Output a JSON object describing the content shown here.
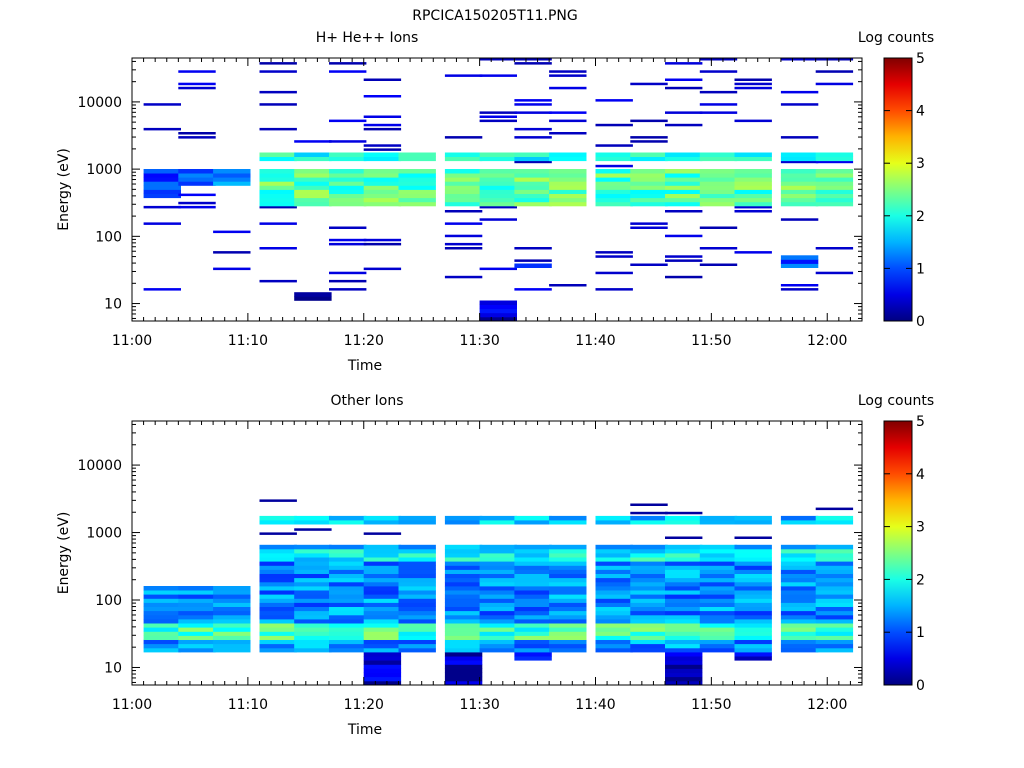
{
  "figure": {
    "title": "RPCICA150205T11.PNG"
  },
  "chart_data": [
    {
      "type": "heatmap",
      "title": "H+ He++ Ions",
      "xlabel": "Time",
      "ylabel": "Energy (eV)",
      "x_ticks": [
        "11:00",
        "11:10",
        "11:20",
        "11:30",
        "11:40",
        "11:50",
        "12:00"
      ],
      "y_ticks": [
        "10",
        "100",
        "1000",
        "10000"
      ],
      "y_scale": "log",
      "ylim": [
        5.5,
        45000
      ],
      "xlim": [
        "11:00",
        "12:03"
      ],
      "colorbar": {
        "label": "Log counts",
        "ticks": [
          "0",
          "1",
          "2",
          "3",
          "4",
          "5"
        ],
        "range": [
          0,
          5
        ]
      },
      "bin_start_times": [
        "11:01",
        "11:04",
        "11:07",
        "11:11",
        "11:14",
        "11:17",
        "11:20",
        "11:23",
        "11:27",
        "11:30",
        "11:33",
        "11:36",
        "11:40",
        "11:43",
        "11:46",
        "11:49",
        "11:52",
        "11:56",
        "11:59"
      ],
      "bin_minutes": 3.2,
      "features": [
        {
          "t_from": "11:01",
          "t_to": "11:04",
          "e_low": 380,
          "e_high": 1000,
          "level": 0.8
        },
        {
          "t_from": "11:04",
          "t_to": "11:10",
          "e_low": 560,
          "e_high": 1000,
          "level": 1.2
        },
        {
          "t_from": "11:11",
          "t_to": "12:03",
          "e_low": 300,
          "e_high": 950,
          "level": 2.3
        },
        {
          "t_from": "11:11",
          "t_to": "12:03",
          "e_low": 1300,
          "e_high": 1800,
          "level": 1.9
        },
        {
          "t_from": "11:14",
          "t_to": "11:17",
          "e_low": 11,
          "e_high": 14,
          "level": 0.4
        },
        {
          "t_from": "11:30",
          "t_to": "11:33",
          "e_low": 5.5,
          "e_high": 10.5,
          "level": 0.3
        },
        {
          "t_from": "11:33",
          "t_to": "11:36",
          "e_low": 32,
          "e_high": 40,
          "level": 0.6
        },
        {
          "t_from": "11:56",
          "t_to": "11:59",
          "e_low": 32,
          "e_high": 50,
          "level": 1.0
        }
      ]
    },
    {
      "type": "heatmap",
      "title": "Other Ions",
      "xlabel": "Time",
      "ylabel": "Energy (eV)",
      "x_ticks": [
        "11:00",
        "11:10",
        "11:20",
        "11:30",
        "11:40",
        "11:50",
        "12:00"
      ],
      "y_ticks": [
        "10",
        "100",
        "1000",
        "10000"
      ],
      "y_scale": "log",
      "ylim": [
        5.5,
        45000
      ],
      "xlim": [
        "11:00",
        "12:03"
      ],
      "colorbar": {
        "label": "Log counts",
        "ticks": [
          "0",
          "1",
          "2",
          "3",
          "4",
          "5"
        ],
        "range": [
          0,
          5
        ]
      },
      "bin_start_times": [
        "11:01",
        "11:04",
        "11:07",
        "11:11",
        "11:14",
        "11:17",
        "11:20",
        "11:23",
        "11:27",
        "11:30",
        "11:33",
        "11:36",
        "11:40",
        "11:43",
        "11:46",
        "11:49",
        "11:52",
        "11:56",
        "11:59"
      ],
      "bin_minutes": 3.2,
      "features": [
        {
          "t_from": "11:01",
          "t_to": "12:03",
          "e_low": 17,
          "e_high": 170,
          "level": 1.3
        },
        {
          "t_from": "11:01",
          "t_to": "12:03",
          "e_low": 25,
          "e_high": 45,
          "level": 2.2
        },
        {
          "t_from": "11:11",
          "t_to": "12:03",
          "e_low": 170,
          "e_high": 700,
          "level": 1.3
        },
        {
          "t_from": "11:11",
          "t_to": "12:03",
          "e_low": 400,
          "e_high": 600,
          "level": 1.9
        },
        {
          "t_from": "11:11",
          "t_to": "12:03",
          "e_low": 1400,
          "e_high": 1750,
          "level": 1.6
        },
        {
          "t_from": "11:20",
          "t_to": "11:23",
          "e_low": 5.5,
          "e_high": 17,
          "level": 0.3
        },
        {
          "t_from": "11:27",
          "t_to": "11:30",
          "e_low": 5.5,
          "e_high": 17,
          "level": 0.3
        },
        {
          "t_from": "11:46",
          "t_to": "11:49",
          "e_low": 5.5,
          "e_high": 17,
          "level": 0.3
        },
        {
          "t_from": "11:33",
          "t_to": "11:36",
          "e_low": 12,
          "e_high": 17,
          "level": 0.4
        },
        {
          "t_from": "11:52",
          "t_to": "11:56",
          "e_low": 12,
          "e_high": 17,
          "level": 0.4
        }
      ]
    }
  ]
}
